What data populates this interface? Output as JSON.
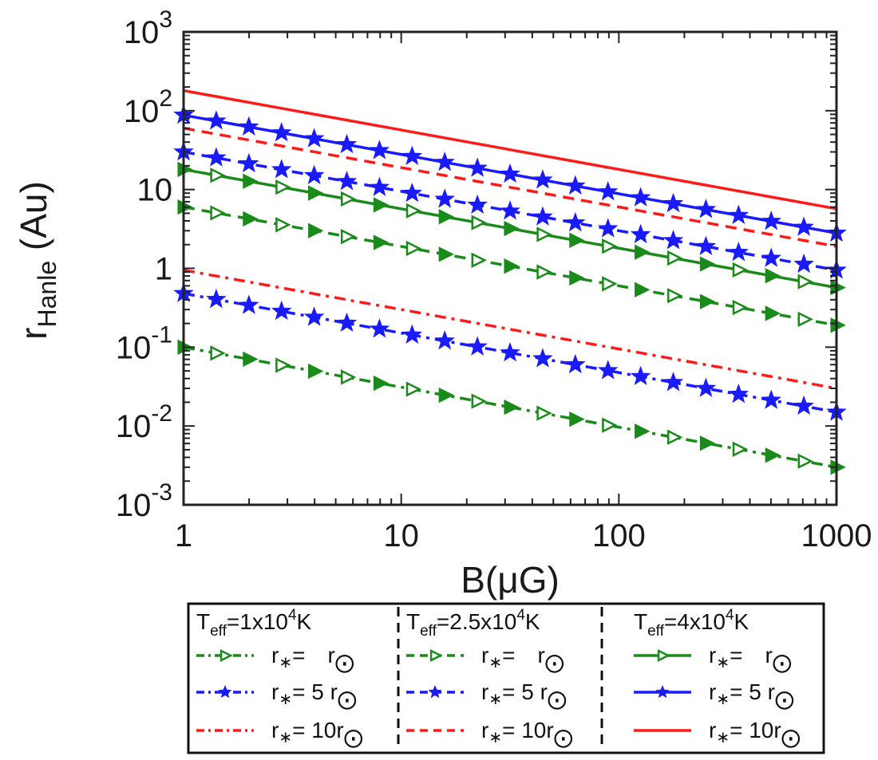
{
  "chart_data": {
    "type": "line",
    "xscale": "log",
    "yscale": "log",
    "xlim": [
      1,
      1000
    ],
    "ylim": [
      0.001,
      1000
    ],
    "xlabel": "B(μG)",
    "ylabel": "r",
    "ylabel_sub": "Hanle",
    "ylabel_unit": "(Au)",
    "x_ticks": [
      {
        "value": 1,
        "label": "1"
      },
      {
        "value": 10,
        "label": "10"
      },
      {
        "value": 100,
        "label": "100"
      },
      {
        "value": 1000,
        "label": "1000"
      }
    ],
    "y_ticks": [
      {
        "value": 0.001,
        "base": "10",
        "exp": "-3"
      },
      {
        "value": 0.01,
        "base": "10",
        "exp": "-2"
      },
      {
        "value": 0.1,
        "base": "10",
        "exp": "-1"
      },
      {
        "value": 1,
        "base": "1",
        "exp": ""
      },
      {
        "value": 10,
        "base": "10",
        "exp": ""
      },
      {
        "value": 100,
        "base": "10",
        "exp": "2"
      },
      {
        "value": 1000,
        "base": "10",
        "exp": "3"
      }
    ],
    "slope": -0.5,
    "series": [
      {
        "group": 0,
        "value_at_1": 0.1,
        "value_at_1000": 0.003,
        "color": "#1a8a1a",
        "dash": "dashdot",
        "marker": "triangle-open"
      },
      {
        "group": 0,
        "value_at_1": 0.48,
        "value_at_1000": 0.015,
        "color": "#1a1aff",
        "dash": "dashdot",
        "marker": "star"
      },
      {
        "group": 0,
        "value_at_1": 0.95,
        "value_at_1000": 0.03,
        "color": "#ff1a1a",
        "dash": "dashdot",
        "marker": "none"
      },
      {
        "group": 1,
        "value_at_1": 6,
        "value_at_1000": 0.19,
        "color": "#1a8a1a",
        "dash": "dashed",
        "marker": "triangle-open"
      },
      {
        "group": 1,
        "value_at_1": 30,
        "value_at_1000": 0.95,
        "color": "#1a1aff",
        "dash": "dashed",
        "marker": "star"
      },
      {
        "group": 1,
        "value_at_1": 60,
        "value_at_1000": 1.9,
        "color": "#ff1a1a",
        "dash": "dashed",
        "marker": "none"
      },
      {
        "group": 2,
        "value_at_1": 18,
        "value_at_1000": 0.57,
        "color": "#1a8a1a",
        "dash": "solid",
        "marker": "triangle-open"
      },
      {
        "group": 2,
        "value_at_1": 88,
        "value_at_1000": 2.8,
        "color": "#1a1aff",
        "dash": "solid",
        "marker": "star"
      },
      {
        "group": 2,
        "value_at_1": 180,
        "value_at_1000": 5.7,
        "color": "#ff1a1a",
        "dash": "solid",
        "marker": "none"
      }
    ],
    "legend": {
      "placement": "below",
      "columns": [
        {
          "t_pre": "T",
          "t_sub": "eff",
          "t_mid": "=1x10",
          "t_sup": "4",
          "t_post": "K"
        },
        {
          "t_pre": "T",
          "t_sub": "eff",
          "t_mid": "=2.5x10",
          "t_sup": "4",
          "t_post": "K"
        },
        {
          "t_pre": "T",
          "t_sub": "eff",
          "t_mid": "=4x10",
          "t_sup": "4",
          "t_post": "K"
        }
      ],
      "rows": [
        {
          "r": "r",
          "star": "∗",
          "eq": "=",
          "coef": "",
          "rsun": "r",
          "sun": "⨀"
        },
        {
          "r": "r",
          "star": "∗",
          "eq": "=",
          "coef": "5",
          "rsun": "r",
          "sun": "⨀"
        },
        {
          "r": "r",
          "star": "∗",
          "eq": "=",
          "coef": "10",
          "rsun": "r",
          "sun": "⨀"
        }
      ]
    },
    "grid": false
  },
  "colors": {
    "green": "#1a8a1a",
    "blue": "#1a1aff",
    "red": "#ff1a1a"
  }
}
